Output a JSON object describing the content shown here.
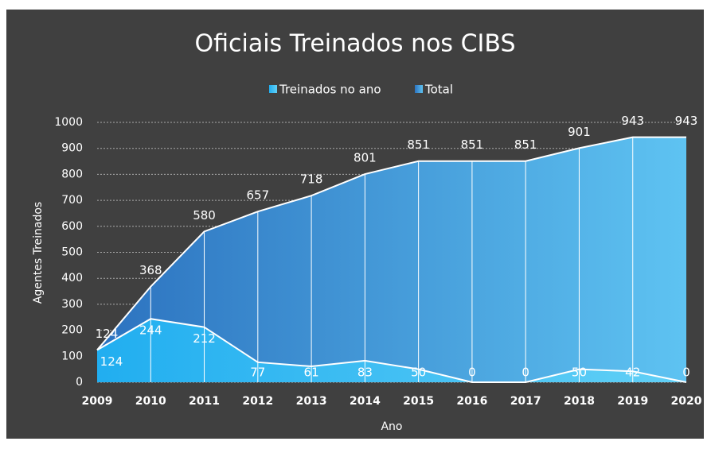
{
  "chart_data": {
    "type": "area",
    "title": "Oficiais Treinados nos CIBS",
    "categories": [
      "2009",
      "2010",
      "2011",
      "2012",
      "2013",
      "2014",
      "2015",
      "2016",
      "2017",
      "2018",
      "2019",
      "2020"
    ],
    "series": [
      {
        "name": "Treinados no ano",
        "color": "#2fb9f2",
        "values": [
          124,
          244,
          212,
          77,
          61,
          83,
          50,
          0,
          0,
          50,
          42,
          0
        ]
      },
      {
        "name": "Total",
        "color": "#3d8fd6",
        "values": [
          124,
          368,
          580,
          657,
          718,
          801,
          851,
          851,
          851,
          901,
          943,
          943
        ]
      }
    ],
    "xlabel": "Ano",
    "ylabel": "Agentes Treinados",
    "ylim": [
      0,
      1000
    ],
    "yticks": [
      0,
      100,
      200,
      300,
      400,
      500,
      600,
      700,
      800,
      900,
      1000
    ],
    "grid": true,
    "legend": "top"
  }
}
